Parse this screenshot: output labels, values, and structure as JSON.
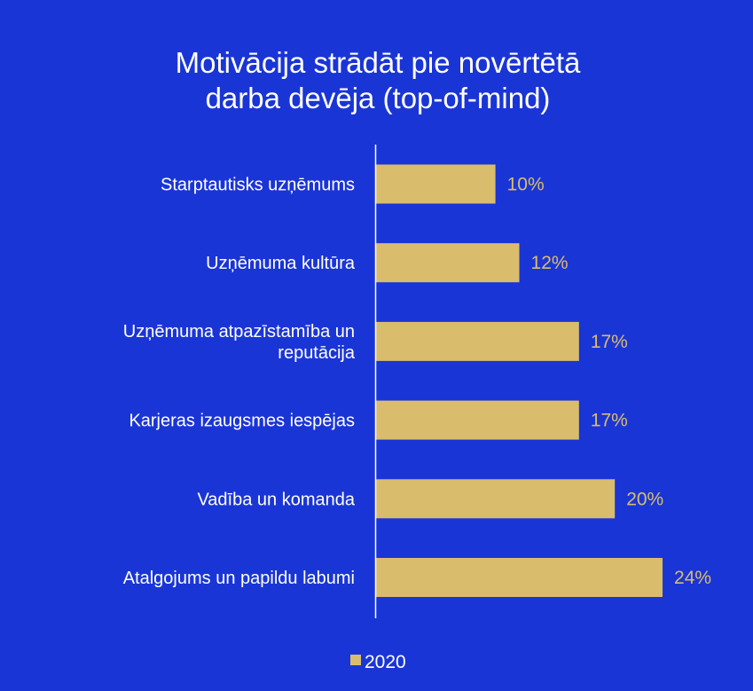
{
  "chart_data": {
    "type": "bar",
    "orientation": "horizontal",
    "title_lines": [
      "Motivācija strādāt pie novērtētā",
      "darba devēja (top-of-mind)"
    ],
    "categories": [
      [
        "Starptautisks uzņēmums"
      ],
      [
        "Uzņēmuma kultūra"
      ],
      [
        "Uzņēmuma atpazīstamība un",
        "reputācija"
      ],
      [
        "Karjeras izaugsmes iespējas"
      ],
      [
        "Vadība un komanda"
      ],
      [
        "Atalgojums un papildu labumi"
      ]
    ],
    "series": [
      {
        "name": "2020",
        "values": [
          10,
          12,
          17,
          17,
          20,
          24
        ],
        "labels": [
          "10%",
          "12%",
          "17%",
          "17%",
          "20%",
          "24%"
        ]
      }
    ],
    "xlim": [
      0,
      24
    ],
    "grid": false,
    "legend_position": "bottom"
  },
  "colors": {
    "background": "#1a35d6",
    "bar": "#d9bd6c",
    "value_label": "#d9bd6c",
    "axis": "#ffffff",
    "text": "#ffffff"
  }
}
